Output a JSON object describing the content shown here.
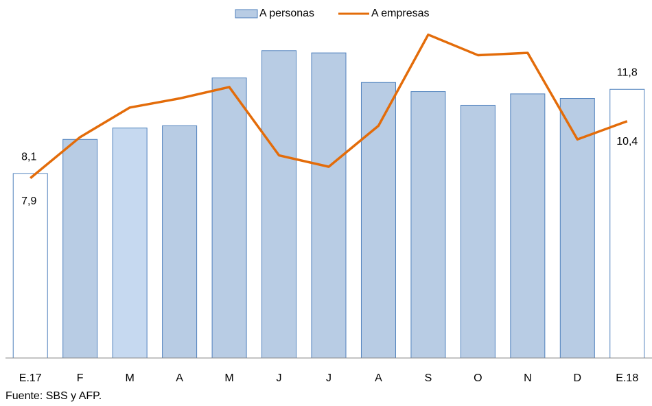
{
  "chart_data": {
    "type": "bar_line",
    "categories": [
      "E.17",
      "F",
      "M",
      "A",
      "M",
      "J",
      "J",
      "A",
      "S",
      "O",
      "N",
      "D",
      "E.18"
    ],
    "series": [
      {
        "name": "A personas",
        "type": "bar",
        "color": "#b8cce4",
        "stroke": "#4f81bd",
        "point_colors": [
          "#ffffff",
          "#b8cce4",
          "#c6d9f0",
          "#b8cce4",
          "#b8cce4",
          "#b8cce4",
          "#b8cce4",
          "#b8cce4",
          "#b8cce4",
          "#b8cce4",
          "#b8cce4",
          "#b8cce4",
          "#ffffff"
        ],
        "values": [
          8.1,
          9.6,
          10.1,
          10.2,
          12.3,
          13.5,
          13.4,
          12.1,
          11.7,
          11.1,
          11.6,
          11.4,
          11.8
        ],
        "value_labels": [
          "8,1",
          null,
          null,
          null,
          null,
          null,
          null,
          null,
          null,
          null,
          null,
          null,
          "11,8"
        ]
      },
      {
        "name": "A empresas",
        "type": "line",
        "color": "#e36c0a",
        "values": [
          7.9,
          9.7,
          11.0,
          11.4,
          11.9,
          8.9,
          8.4,
          10.2,
          14.2,
          13.3,
          13.4,
          9.6,
          10.4
        ],
        "value_labels": [
          "7,9",
          null,
          null,
          null,
          null,
          null,
          null,
          null,
          null,
          null,
          null,
          null,
          "10,4"
        ]
      }
    ],
    "ylim": [
      0,
      15
    ],
    "source": "Fuente: SBS y AFP."
  }
}
